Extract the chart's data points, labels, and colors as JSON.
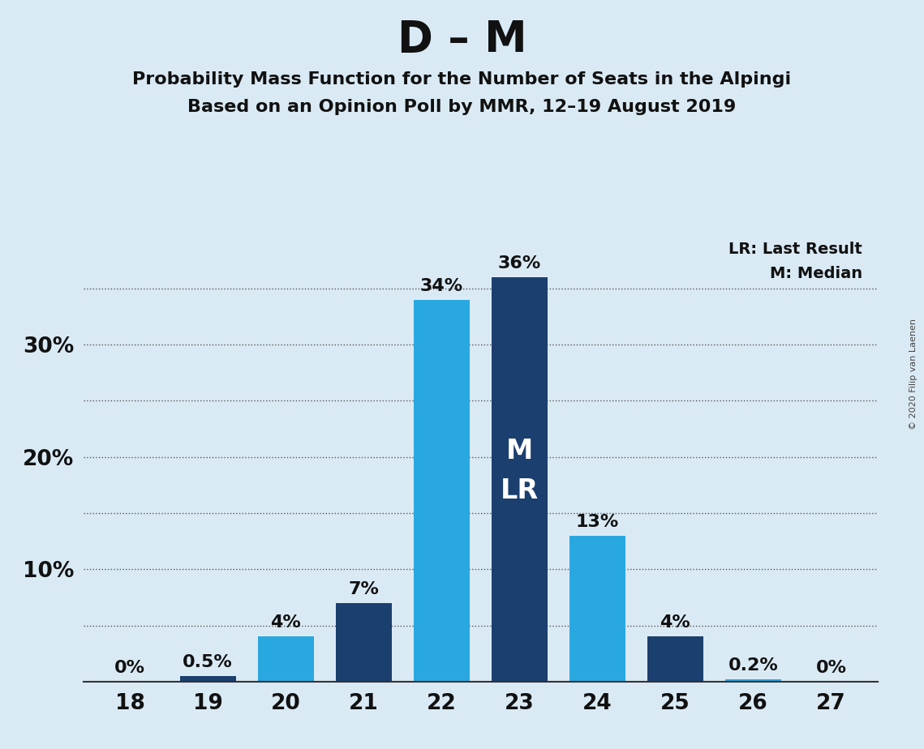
{
  "title": "D – M",
  "subtitle1": "Probability Mass Function for the Number of Seats in the Alpingi",
  "subtitle2": "Based on an Opinion Poll by MMR, 12–19 August 2019",
  "seats": [
    18,
    19,
    20,
    21,
    22,
    23,
    24,
    25,
    26,
    27
  ],
  "values": [
    0.0,
    0.5,
    4.0,
    7.0,
    34.0,
    36.0,
    13.0,
    4.0,
    0.2,
    0.0
  ],
  "labels": [
    "0%",
    "0.5%",
    "4%",
    "7%",
    "34%",
    "36%",
    "13%",
    "4%",
    "0.2%",
    "0%"
  ],
  "colors": [
    "#29a8e0",
    "#1b3f6e",
    "#29a8e0",
    "#1b3f6e",
    "#29a8e0",
    "#1b3f6e",
    "#29a8e0",
    "#1b3f6e",
    "#29a8e0",
    "#29a8e0"
  ],
  "background_color": "#daeaf5",
  "light_blue": "#29a8e0",
  "dark_blue": "#1b3f6e",
  "ylim": [
    0,
    40
  ],
  "grid_positions": [
    5,
    10,
    15,
    20,
    25,
    30,
    35
  ],
  "median_bar": 23,
  "legend_text1": "LR: Last Result",
  "legend_text2": "M: Median",
  "copyright": "© 2020 Filip van Laenen",
  "title_fontsize": 38,
  "subtitle_fontsize": 16,
  "label_fontsize": 16,
  "tick_fontsize": 19,
  "bar_width": 0.72
}
